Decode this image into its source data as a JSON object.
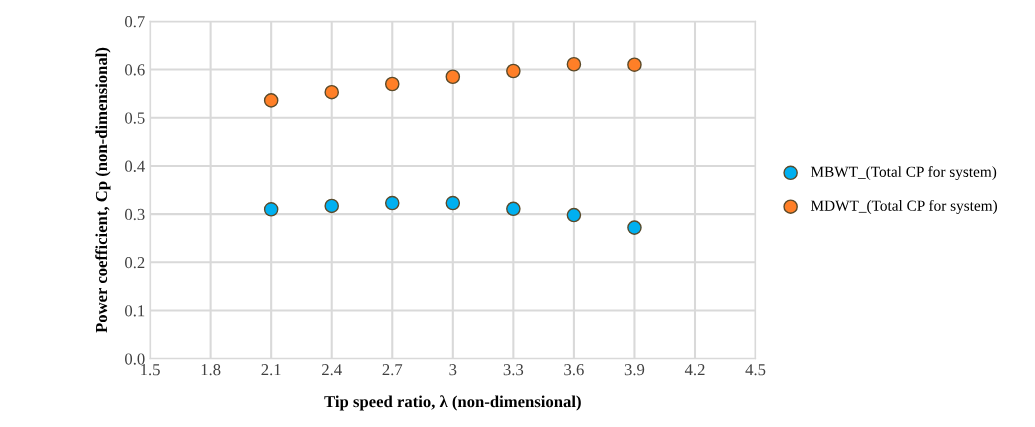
{
  "chart_data": {
    "type": "scatter",
    "xlabel": "Tip speed ratio, λ (non-dimensional)",
    "ylabel": "Power coefficient, Cp (non-dimensional)",
    "x": [
      2.1,
      2.4,
      2.7,
      3.0,
      3.3,
      3.6,
      3.9
    ],
    "series": [
      {
        "name": "MBWT_(Total CP for system)",
        "color": "#00b0f0",
        "values": [
          0.31,
          0.317,
          0.323,
          0.323,
          0.311,
          0.298,
          0.272
        ]
      },
      {
        "name": "MDWT_(Total CP for system)",
        "color": "#ff7f27",
        "values": [
          0.536,
          0.553,
          0.57,
          0.585,
          0.597,
          0.611,
          0.61
        ]
      }
    ],
    "xlim": [
      1.5,
      4.5
    ],
    "xticks": [
      {
        "value": 1.5,
        "label": "1.5"
      },
      {
        "value": 1.8,
        "label": "1.8"
      },
      {
        "value": 2.1,
        "label": "2.1"
      },
      {
        "value": 2.4,
        "label": "2.4"
      },
      {
        "value": 2.7,
        "label": "2.7"
      },
      3,
      {
        "value": 3.3,
        "label": "3.3"
      },
      {
        "value": 3.6,
        "label": "3.6"
      },
      {
        "value": 3.9,
        "label": "3.9"
      },
      {
        "value": 4.2,
        "label": "4.2"
      },
      {
        "value": 4.5,
        "label": "4.5"
      }
    ],
    "ylim": [
      0,
      0.7
    ],
    "yticks": [
      {
        "value": 0,
        "label": "0.0"
      },
      0.1,
      0.2,
      0.3,
      0.4,
      0.5,
      0.6,
      0.7
    ],
    "grid": true,
    "legend": "right",
    "marker": "circle"
  }
}
